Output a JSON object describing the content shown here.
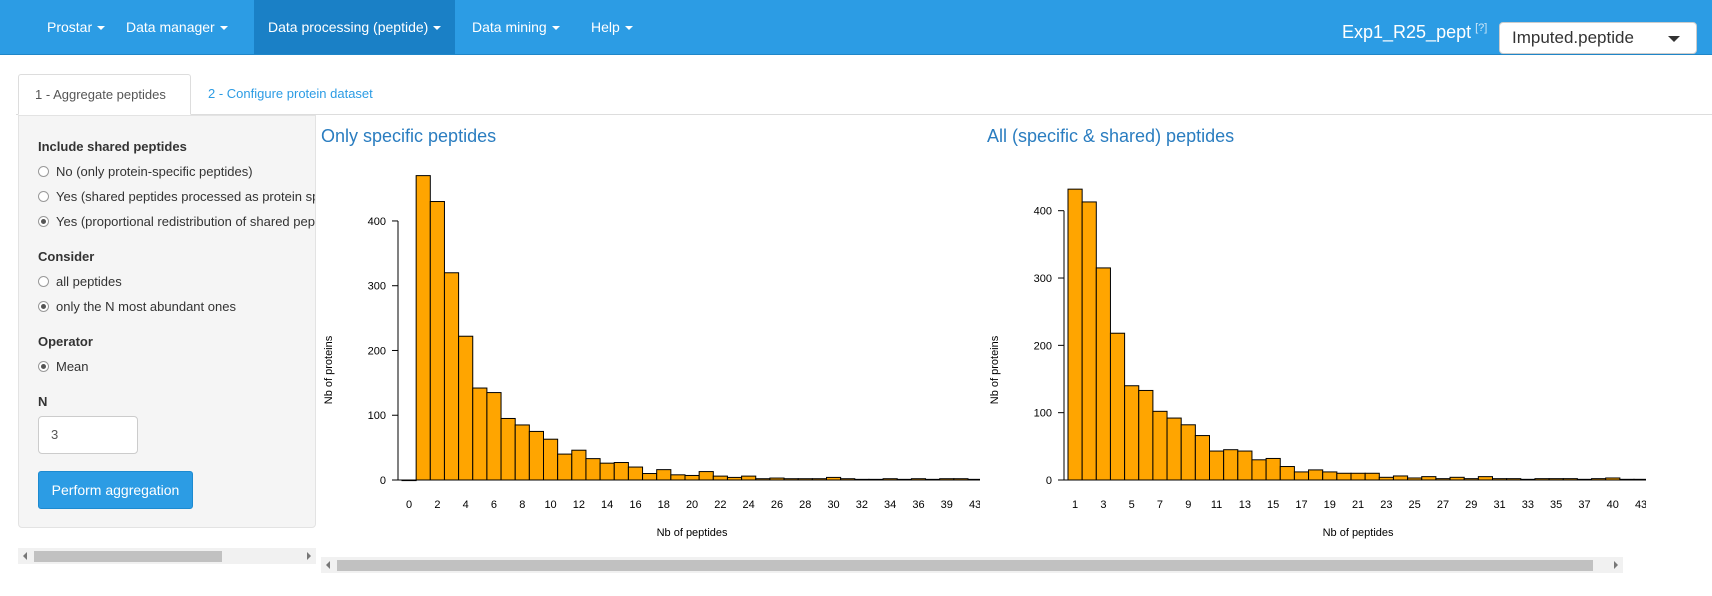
{
  "navbar": {
    "items": [
      {
        "label": "Prostar"
      },
      {
        "label": "Data manager"
      },
      {
        "label": "Data processing (peptide)"
      },
      {
        "label": "Data mining"
      },
      {
        "label": "Help"
      }
    ],
    "dataset_name": "Exp1_R25_pept",
    "help_mark": "[?]",
    "dataset_selected": "Imputed.peptide"
  },
  "tabs": [
    {
      "label": "1 - Aggregate peptides"
    },
    {
      "label": "2 - Configure protein dataset"
    }
  ],
  "panel": {
    "shared_label": "Include shared peptides",
    "shared_options": [
      "No (only protein-specific peptides)",
      "Yes (shared peptides processed as protein specific)",
      "Yes (proportional redistribution of shared peptides)"
    ],
    "shared_selected": 2,
    "consider_label": "Consider",
    "consider_options": [
      "all peptides",
      "only the N most abundant ones"
    ],
    "consider_selected": 1,
    "operator_label": "Operator",
    "operator_options": [
      "Mean"
    ],
    "operator_selected": 0,
    "n_label": "N",
    "n_value": "3",
    "button_label": "Perform aggregation"
  },
  "chart_data": [
    {
      "type": "bar",
      "title": "Only specific peptides",
      "xlabel": "Nb of peptides",
      "ylabel": "Nb of proteins",
      "categories": [
        "0",
        "1",
        "2",
        "3",
        "4",
        "5",
        "6",
        "7",
        "8",
        "9",
        "10",
        "11",
        "12",
        "13",
        "14",
        "15",
        "16",
        "17",
        "18",
        "19",
        "20",
        "21",
        "22",
        "23",
        "24",
        "25",
        "26",
        "27",
        "28",
        "29",
        "30",
        "31",
        "32",
        "33",
        "34",
        "35",
        "36",
        "37",
        "39",
        "40",
        "43"
      ],
      "tick_labels": [
        "0",
        "2",
        "4",
        "6",
        "8",
        "10",
        "12",
        "14",
        "16",
        "18",
        "20",
        "22",
        "24",
        "26",
        "28",
        "30",
        "32",
        "34",
        "36",
        "39",
        "43"
      ],
      "values": [
        0,
        470,
        430,
        320,
        222,
        142,
        135,
        95,
        85,
        75,
        63,
        40,
        46,
        33,
        26,
        27,
        20,
        10,
        16,
        8,
        7,
        13,
        6,
        4,
        6,
        2,
        3,
        2,
        2,
        2,
        4,
        2,
        1,
        1,
        2,
        1,
        2,
        1,
        2,
        2,
        1
      ],
      "yticks": [
        0,
        100,
        200,
        300,
        400
      ],
      "ylim": [
        0,
        480
      ]
    },
    {
      "type": "bar",
      "title": "All (specific & shared) peptides",
      "xlabel": "Nb of peptides",
      "ylabel": "Nb of proteins",
      "categories": [
        "1",
        "2",
        "3",
        "4",
        "5",
        "6",
        "7",
        "8",
        "9",
        "10",
        "11",
        "12",
        "13",
        "14",
        "15",
        "16",
        "17",
        "18",
        "19",
        "20",
        "21",
        "22",
        "23",
        "24",
        "25",
        "26",
        "27",
        "28",
        "29",
        "30",
        "31",
        "32",
        "33",
        "34",
        "35",
        "36",
        "37",
        "38",
        "40",
        "41",
        "43"
      ],
      "tick_labels": [
        "1",
        "3",
        "5",
        "7",
        "9",
        "11",
        "13",
        "15",
        "17",
        "19",
        "21",
        "23",
        "25",
        "27",
        "29",
        "31",
        "33",
        "35",
        "37",
        "40",
        "43"
      ],
      "values": [
        432,
        413,
        315,
        218,
        140,
        133,
        102,
        92,
        82,
        66,
        43,
        45,
        43,
        30,
        32,
        20,
        12,
        15,
        12,
        10,
        10,
        10,
        4,
        6,
        3,
        5,
        2,
        4,
        2,
        5,
        2,
        2,
        1,
        2,
        2,
        2,
        1,
        2,
        3,
        1,
        1
      ],
      "yticks": [
        0,
        100,
        200,
        300,
        400
      ],
      "ylim": [
        0,
        450
      ]
    }
  ]
}
